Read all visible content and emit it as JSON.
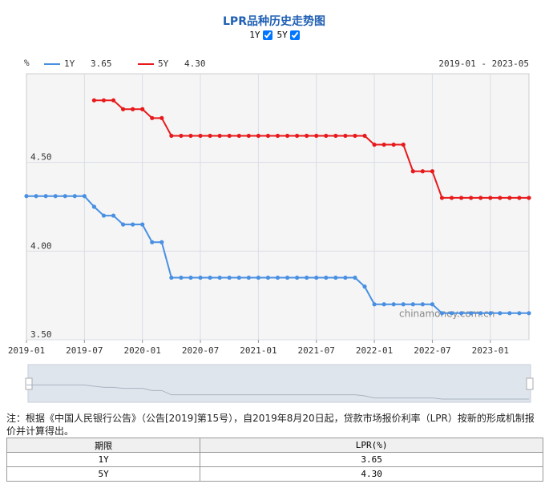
{
  "chart_data": {
    "type": "line",
    "title": "LPR品种历史走势图",
    "toggles": [
      "1Y",
      "5Y"
    ],
    "unit": "%",
    "date_range": "2019-01 - 2023-05",
    "watermark": "chinamoney.com.cn",
    "categories": [
      "2019-01",
      null,
      null,
      null,
      null,
      null,
      "2019-07",
      null,
      null,
      null,
      null,
      null,
      "2020-01",
      null,
      null,
      null,
      null,
      null,
      "2020-07",
      null,
      null,
      null,
      null,
      null,
      "2021-01",
      null,
      null,
      null,
      null,
      null,
      "2021-07",
      null,
      null,
      null,
      null,
      null,
      "2022-01",
      null,
      null,
      null,
      null,
      null,
      "2022-07",
      null,
      null,
      null,
      null,
      null,
      "2023-01",
      null,
      null,
      null,
      null
    ],
    "series": [
      {
        "name": "1Y",
        "color": "#4a90e2",
        "latest": "3.65",
        "values": [
          4.31,
          4.31,
          4.31,
          4.31,
          4.31,
          4.31,
          4.31,
          4.25,
          4.2,
          4.2,
          4.15,
          4.15,
          4.15,
          4.05,
          4.05,
          3.85,
          3.85,
          3.85,
          3.85,
          3.85,
          3.85,
          3.85,
          3.85,
          3.85,
          3.85,
          3.85,
          3.85,
          3.85,
          3.85,
          3.85,
          3.85,
          3.85,
          3.85,
          3.85,
          3.85,
          3.8,
          3.7,
          3.7,
          3.7,
          3.7,
          3.7,
          3.7,
          3.7,
          3.65,
          3.65,
          3.65,
          3.65,
          3.65,
          3.65,
          3.65,
          3.65,
          3.65,
          3.65
        ]
      },
      {
        "name": "5Y",
        "color": "#e8191b",
        "latest": "4.30",
        "values": [
          null,
          null,
          null,
          null,
          null,
          null,
          null,
          4.85,
          4.85,
          4.85,
          4.8,
          4.8,
          4.8,
          4.75,
          4.75,
          4.65,
          4.65,
          4.65,
          4.65,
          4.65,
          4.65,
          4.65,
          4.65,
          4.65,
          4.65,
          4.65,
          4.65,
          4.65,
          4.65,
          4.65,
          4.65,
          4.65,
          4.65,
          4.65,
          4.65,
          4.65,
          4.6,
          4.6,
          4.6,
          4.6,
          4.45,
          4.45,
          4.45,
          4.3,
          4.3,
          4.3,
          4.3,
          4.3,
          4.3,
          4.3,
          4.3,
          4.3,
          4.3
        ]
      }
    ],
    "ylim": [
      3.5,
      5.0
    ],
    "yticks": [
      {
        "value": 3.5,
        "label": "3.50"
      },
      {
        "value": 4.0,
        "label": "4.00"
      },
      {
        "value": 4.5,
        "label": "4.50"
      }
    ],
    "grid": true
  },
  "note": "注：根据《中国人民银行公告》（公告[2019]第15号），自2019年8月20日起，贷款市场报价利率（LPR）按新的形成机制报价并计算得出。",
  "table": {
    "header": [
      "期限",
      "LPR(%)"
    ],
    "rows": [
      [
        "1Y",
        "3.65"
      ],
      [
        "5Y",
        "4.30"
      ]
    ]
  }
}
